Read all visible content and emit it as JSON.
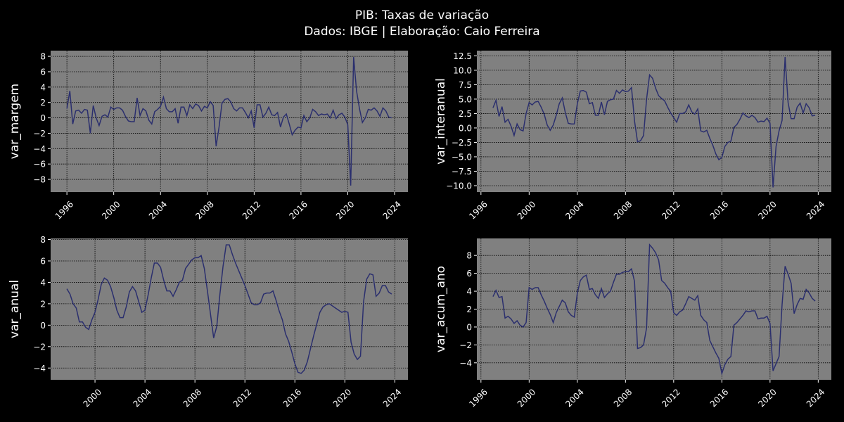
{
  "title": "PIB: Taxas de variação",
  "subtitle": "Dados: IBGE | Elaboração: Caio Ferreira",
  "chart_data": [
    {
      "type": "line",
      "ylabel": "var_margem",
      "color": "#2b2f6e",
      "grid": true,
      "xlim": [
        1994.61,
        2025.14
      ],
      "xticks": [
        1996,
        2000,
        2004,
        2008,
        2012,
        2016,
        2020,
        2024
      ],
      "ylim": [
        -9.64,
        8.74
      ],
      "yticks": [
        {
          "value": -8,
          "label": "−8"
        },
        {
          "value": -6,
          "label": "−6"
        },
        {
          "value": -4,
          "label": "−4"
        },
        {
          "value": -2,
          "label": "−2"
        },
        0,
        2,
        4,
        6,
        8
      ],
      "x": [
        1996,
        1996.25,
        1996.5,
        1996.75,
        1997,
        1997.25,
        1997.5,
        1997.75,
        1998,
        1998.25,
        1998.5,
        1998.75,
        1999,
        1999.25,
        1999.5,
        1999.75,
        2000,
        2000.25,
        2000.5,
        2000.75,
        2001,
        2001.25,
        2001.5,
        2001.75,
        2002,
        2002.25,
        2002.5,
        2002.75,
        2003,
        2003.25,
        2003.5,
        2003.75,
        2004,
        2004.25,
        2004.5,
        2004.75,
        2005,
        2005.25,
        2005.5,
        2005.75,
        2006,
        2006.25,
        2006.5,
        2006.75,
        2007,
        2007.25,
        2007.5,
        2007.75,
        2008,
        2008.25,
        2008.5,
        2008.75,
        2009,
        2009.25,
        2009.5,
        2009.75,
        2010,
        2010.25,
        2010.5,
        2010.75,
        2011,
        2011.25,
        2011.5,
        2011.75,
        2012,
        2012.25,
        2012.5,
        2012.75,
        2013,
        2013.25,
        2013.5,
        2013.75,
        2014,
        2014.25,
        2014.5,
        2014.75,
        2015,
        2015.25,
        2015.5,
        2015.75,
        2016,
        2016.25,
        2016.5,
        2016.75,
        2017,
        2017.25,
        2017.5,
        2017.75,
        2018,
        2018.25,
        2018.5,
        2018.75,
        2019,
        2019.25,
        2019.5,
        2019.75,
        2020,
        2020.25,
        2020.5,
        2020.75,
        2021,
        2021.25,
        2021.5,
        2021.75,
        2022,
        2022.25,
        2022.5,
        2022.75,
        2023,
        2023.25,
        2023.5,
        2023.75
      ],
      "values": [
        1.2,
        3.5,
        -0.8,
        0.9,
        1.0,
        0.6,
        1.1,
        1.0,
        -2.0,
        1.6,
        0.0,
        -1.0,
        0.2,
        0.4,
        0.1,
        1.4,
        1.1,
        1.3,
        1.3,
        1.0,
        0.2,
        -0.4,
        -0.5,
        -0.5,
        2.6,
        0.3,
        1.2,
        0.9,
        -0.3,
        -0.8,
        0.8,
        1.1,
        1.5,
        2.7,
        1.2,
        0.8,
        0.8,
        1.2,
        -0.7,
        1.4,
        1.4,
        0.3,
        1.7,
        1.2,
        1.8,
        1.6,
        0.9,
        1.5,
        1.3,
        2.1,
        1.6,
        -3.7,
        -1.2,
        1.9,
        2.4,
        2.5,
        2.1,
        1.2,
        0.9,
        1.3,
        1.3,
        0.7,
        0.0,
        0.9,
        -1.3,
        1.7,
        1.7,
        0.1,
        0.6,
        1.4,
        0.4,
        0.3,
        0.7,
        -1.2,
        0.1,
        0.5,
        -0.8,
        -2.2,
        -1.6,
        -1.2,
        -1.3,
        0.3,
        -0.5,
        0.0,
        1.1,
        0.8,
        0.3,
        0.5,
        0.4,
        0.5,
        0.0,
        1.0,
        -0.1,
        0.4,
        0.6,
        0.1,
        -0.9,
        -8.8,
        7.9,
        3.5,
        1.2,
        -0.6,
        0.0,
        1.1,
        1.0,
        1.3,
        0.9,
        0.2,
        1.3,
        0.9,
        0.1,
        0.0
      ]
    },
    {
      "type": "line",
      "ylabel": "var_interanual",
      "color": "#2b2f6e",
      "grid": true,
      "xlim": [
        1995.66,
        2025.09
      ],
      "xticks": [
        1996,
        2000,
        2004,
        2008,
        2012,
        2016,
        2020,
        2024
      ],
      "ylim": [
        -11.1,
        13.4
      ],
      "yticks": [
        {
          "value": -10,
          "label": "−10.0"
        },
        {
          "value": -7.5,
          "label": "−7.5"
        },
        {
          "value": -5,
          "label": "−5.0"
        },
        {
          "value": -2.5,
          "label": "−2.5"
        },
        {
          "value": 0,
          "label": "0.0"
        },
        2.5,
        {
          "value": 5,
          "label": "5.0"
        },
        7.5,
        {
          "value": 10,
          "label": "10.0"
        },
        12.5
      ],
      "x": [
        1997,
        1997.25,
        1997.5,
        1997.75,
        1998,
        1998.25,
        1998.5,
        1998.75,
        1999,
        1999.25,
        1999.5,
        1999.75,
        2000,
        2000.25,
        2000.5,
        2000.75,
        2001,
        2001.25,
        2001.5,
        2001.75,
        2002,
        2002.25,
        2002.5,
        2002.75,
        2003,
        2003.25,
        2003.5,
        2003.75,
        2004,
        2004.25,
        2004.5,
        2004.75,
        2005,
        2005.25,
        2005.5,
        2005.75,
        2006,
        2006.25,
        2006.5,
        2006.75,
        2007,
        2007.25,
        2007.5,
        2007.75,
        2008,
        2008.25,
        2008.5,
        2008.75,
        2009,
        2009.25,
        2009.5,
        2009.75,
        2010,
        2010.25,
        2010.5,
        2010.75,
        2011,
        2011.25,
        2011.5,
        2011.75,
        2012,
        2012.25,
        2012.5,
        2012.75,
        2013,
        2013.25,
        2013.5,
        2013.75,
        2014,
        2014.25,
        2014.5,
        2014.75,
        2015,
        2015.25,
        2015.5,
        2015.75,
        2016,
        2016.25,
        2016.5,
        2016.75,
        2017,
        2017.25,
        2017.5,
        2017.75,
        2018,
        2018.25,
        2018.5,
        2018.75,
        2019,
        2019.25,
        2019.5,
        2019.75,
        2020,
        2020.25,
        2020.5,
        2020.75,
        2021,
        2021.25,
        2021.5,
        2021.75,
        2022,
        2022.25,
        2022.5,
        2022.75,
        2023,
        2023.25,
        2023.5,
        2023.75
      ],
      "values": [
        3.5,
        4.8,
        2.0,
        3.7,
        1.0,
        1.5,
        0.3,
        -1.3,
        0.7,
        -0.3,
        -0.5,
        2.5,
        4.4,
        4.0,
        4.5,
        4.6,
        3.6,
        2.4,
        0.5,
        -0.4,
        0.5,
        2.2,
        4.2,
        5.2,
        2.7,
        0.8,
        0.7,
        0.7,
        4.2,
        6.4,
        6.5,
        6.2,
        4.2,
        4.4,
        2.2,
        2.2,
        4.5,
        2.3,
        4.6,
        4.9,
        5.0,
        6.5,
        6.0,
        6.6,
        6.3,
        6.4,
        7.0,
        1.2,
        -2.4,
        -2.2,
        -1.3,
        5.0,
        9.2,
        8.6,
        6.9,
        5.6,
        5.1,
        4.7,
        3.6,
        2.6,
        1.8,
        1.0,
        2.5,
        2.5,
        2.8,
        4.0,
        2.8,
        2.4,
        3.3,
        -0.5,
        -0.7,
        -0.4,
        -1.8,
        -3.0,
        -4.5,
        -5.5,
        -5.1,
        -3.2,
        -2.5,
        -2.3,
        0.1,
        0.6,
        1.5,
        2.6,
        2.1,
        1.8,
        2.2,
        1.8,
        1.0,
        1.2,
        1.1,
        1.7,
        0.8,
        -10.3,
        -3.2,
        -0.5,
        1.3,
        12.3,
        4.4,
        1.6,
        1.6,
        3.6,
        4.3,
        2.6,
        4.2,
        3.5,
        2.1,
        2.2
      ]
    },
    {
      "type": "line",
      "ylabel": "var_anual",
      "color": "#2b2f6e",
      "grid": true,
      "xlim": [
        1996.45,
        2025.05
      ],
      "xticks": [
        2000,
        2004,
        2008,
        2012,
        2016,
        2020,
        2024
      ],
      "ylim": [
        -5.1,
        8.1
      ],
      "yticks": [
        {
          "value": -4,
          "label": "−4"
        },
        {
          "value": -2,
          "label": "−2"
        },
        0,
        2,
        4,
        6,
        8
      ],
      "x": [
        1997.75,
        1998,
        1998.25,
        1998.5,
        1998.75,
        1999,
        1999.25,
        1999.5,
        1999.75,
        2000,
        2000.25,
        2000.5,
        2000.75,
        2001,
        2001.25,
        2001.5,
        2001.75,
        2002,
        2002.25,
        2002.5,
        2002.75,
        2003,
        2003.25,
        2003.5,
        2003.75,
        2004,
        2004.25,
        2004.5,
        2004.75,
        2005,
        2005.25,
        2005.5,
        2005.75,
        2006,
        2006.25,
        2006.5,
        2006.75,
        2007,
        2007.25,
        2007.5,
        2007.75,
        2008,
        2008.25,
        2008.5,
        2008.75,
        2009,
        2009.25,
        2009.5,
        2009.75,
        2010,
        2010.25,
        2010.5,
        2010.75,
        2011,
        2011.25,
        2011.5,
        2011.75,
        2012,
        2012.25,
        2012.5,
        2012.75,
        2013,
        2013.25,
        2013.5,
        2013.75,
        2014,
        2014.25,
        2014.5,
        2014.75,
        2015,
        2015.25,
        2015.5,
        2015.75,
        2016,
        2016.25,
        2016.5,
        2016.75,
        2017,
        2017.25,
        2017.5,
        2017.75,
        2018,
        2018.25,
        2018.5,
        2018.75,
        2019,
        2019.25,
        2019.5,
        2019.75,
        2020,
        2020.25,
        2020.5,
        2020.75,
        2021,
        2021.25,
        2021.5,
        2021.75,
        2022,
        2022.25,
        2022.5,
        2022.75,
        2023,
        2023.25,
        2023.5,
        2023.75
      ],
      "values": [
        3.4,
        2.9,
        2.0,
        1.6,
        0.3,
        0.3,
        -0.2,
        -0.4,
        0.5,
        1.2,
        2.4,
        3.8,
        4.4,
        4.2,
        3.6,
        2.6,
        1.4,
        0.7,
        0.7,
        1.7,
        3.1,
        3.6,
        3.2,
        2.2,
        1.2,
        1.4,
        2.8,
        4.4,
        5.8,
        5.8,
        5.4,
        4.2,
        3.2,
        3.2,
        2.7,
        3.3,
        4.0,
        4.2,
        5.3,
        5.7,
        6.1,
        6.3,
        6.3,
        6.5,
        5.3,
        3.2,
        1.0,
        -1.2,
        -0.1,
        2.9,
        5.5,
        7.5,
        7.5,
        6.6,
        5.8,
        5.1,
        4.4,
        3.7,
        2.9,
        2.1,
        1.9,
        1.9,
        2.1,
        2.9,
        3.0,
        3.0,
        3.2,
        2.3,
        1.3,
        0.5,
        -0.8,
        -1.5,
        -2.5,
        -3.6,
        -4.4,
        -4.5,
        -4.2,
        -3.4,
        -2.2,
        -1.0,
        0.1,
        1.2,
        1.7,
        1.9,
        2.0,
        1.8,
        1.6,
        1.4,
        1.2,
        1.3,
        1.2,
        -1.6,
        -2.7,
        -3.2,
        -2.9,
        2.2,
        4.3,
        4.8,
        4.7,
        2.7,
        3.0,
        3.7,
        3.7,
        3.1,
        2.9
      ]
    },
    {
      "type": "line",
      "ylabel": "var_acum_ano",
      "color": "#2b2f6e",
      "grid": true,
      "xlim": [
        1995.66,
        2025.09
      ],
      "xticks": [
        1996,
        2000,
        2004,
        2008,
        2012,
        2016,
        2020,
        2024
      ],
      "ylim": [
        -5.9,
        9.9
      ],
      "yticks": [
        {
          "value": -4,
          "label": "−4"
        },
        {
          "value": -2,
          "label": "−2"
        },
        0,
        2,
        4,
        6,
        8
      ],
      "x": [
        1997,
        1997.25,
        1997.5,
        1997.75,
        1998,
        1998.25,
        1998.5,
        1998.75,
        1999,
        1999.25,
        1999.5,
        1999.75,
        2000,
        2000.25,
        2000.5,
        2000.75,
        2001,
        2001.25,
        2001.5,
        2001.75,
        2002,
        2002.25,
        2002.5,
        2002.75,
        2003,
        2003.25,
        2003.5,
        2003.75,
        2004,
        2004.25,
        2004.5,
        2004.75,
        2005,
        2005.25,
        2005.5,
        2005.75,
        2006,
        2006.25,
        2006.5,
        2006.75,
        2007,
        2007.25,
        2007.5,
        2007.75,
        2008,
        2008.25,
        2008.5,
        2008.75,
        2009,
        2009.25,
        2009.5,
        2009.75,
        2010,
        2010.25,
        2010.5,
        2010.75,
        2011,
        2011.25,
        2011.5,
        2011.75,
        2012,
        2012.25,
        2012.5,
        2012.75,
        2013,
        2013.25,
        2013.5,
        2013.75,
        2014,
        2014.25,
        2014.5,
        2014.75,
        2015,
        2015.25,
        2015.5,
        2015.75,
        2016,
        2016.25,
        2016.5,
        2016.75,
        2017,
        2017.25,
        2017.5,
        2017.75,
        2018,
        2018.25,
        2018.5,
        2018.75,
        2019,
        2019.25,
        2019.5,
        2019.75,
        2020,
        2020.25,
        2020.5,
        2020.75,
        2021,
        2021.25,
        2021.5,
        2021.75,
        2022,
        2022.25,
        2022.5,
        2022.75,
        2023,
        2023.25,
        2023.5,
        2023.75
      ],
      "values": [
        3.4,
        4.1,
        3.3,
        3.4,
        1.0,
        1.2,
        0.9,
        0.4,
        0.7,
        0.2,
        0.0,
        0.5,
        4.4,
        4.2,
        4.4,
        4.4,
        3.6,
        2.9,
        2.1,
        1.4,
        0.5,
        1.6,
        2.3,
        3.0,
        2.7,
        1.7,
        1.3,
        1.1,
        3.8,
        5.2,
        5.6,
        5.8,
        4.2,
        4.3,
        3.6,
        3.2,
        4.3,
        3.3,
        3.7,
        4.0,
        5.0,
        5.9,
        5.9,
        6.1,
        6.2,
        6.2,
        6.5,
        5.1,
        -2.4,
        -2.3,
        -2.0,
        -0.1,
        9.2,
        8.8,
        8.3,
        7.5,
        5.2,
        4.9,
        4.4,
        4.0,
        1.6,
        1.3,
        1.7,
        1.9,
        2.6,
        3.4,
        3.2,
        3.0,
        3.5,
        1.3,
        0.8,
        0.5,
        -1.5,
        -2.2,
        -2.9,
        -3.5,
        -5.2,
        -4.2,
        -3.6,
        -3.3,
        0.2,
        0.5,
        0.9,
        1.3,
        1.8,
        1.7,
        1.8,
        1.8,
        0.9,
        1.0,
        1.0,
        1.2,
        0.4,
        -4.9,
        -4.1,
        -3.3,
        2.5,
        6.8,
        5.9,
        4.9,
        1.5,
        2.5,
        3.2,
        3.1,
        4.2,
        3.8,
        3.2,
        2.9
      ]
    }
  ]
}
